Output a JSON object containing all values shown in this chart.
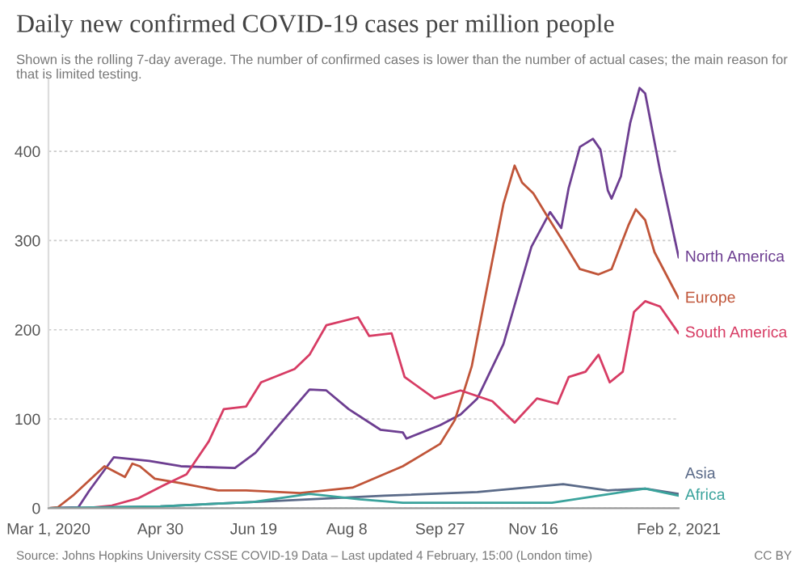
{
  "chart_data": {
    "type": "line",
    "title": "Daily new confirmed COVID-19 cases per million people",
    "subtitle": "Shown is the rolling 7-day average. The number of confirmed cases is lower than the number of actual cases; the main reason for that is limited testing.",
    "annotations": [
      "Source: Johns Hopkins University CSSE COVID-19 Data – Last updated 4 February, 15:00 (London time)",
      "CC BY"
    ],
    "xlim": [
      "2020-03-01",
      "2021-02-02"
    ],
    "xticks": [
      {
        "value": "2020-03-01",
        "label": "Mar 1, 2020"
      },
      {
        "value": "2020-04-30",
        "label": "Apr 30"
      },
      {
        "value": "2020-06-19",
        "label": "Jun 19"
      },
      {
        "value": "2020-08-08",
        "label": "Aug 8"
      },
      {
        "value": "2020-09-27",
        "label": "Sep 27"
      },
      {
        "value": "2020-11-16",
        "label": "Nov 16"
      },
      {
        "value": "2021-02-02",
        "label": "Feb 2, 2021"
      }
    ],
    "ylim": [
      0,
      480
    ],
    "yticks": [
      0,
      100,
      200,
      300,
      400
    ],
    "grid": "y",
    "line_style": "solid",
    "series": [
      {
        "name": "North America",
        "color": "#6d3e91",
        "x": [
          "2020-03-01",
          "2020-03-17",
          "2020-03-23",
          "2020-04-05",
          "2020-04-24",
          "2020-05-11",
          "2020-06-09",
          "2020-06-20",
          "2020-07-05",
          "2020-07-19",
          "2020-07-28",
          "2020-08-09",
          "2020-08-26",
          "2020-09-07",
          "2020-09-09",
          "2020-09-27",
          "2020-10-08",
          "2020-10-17",
          "2020-10-31",
          "2020-11-15",
          "2020-11-25",
          "2020-12-01",
          "2020-12-05",
          "2020-12-11",
          "2020-12-18",
          "2020-12-22",
          "2020-12-26",
          "2020-12-28",
          "2021-01-02",
          "2021-01-07",
          "2021-01-12",
          "2021-01-15",
          "2021-01-23",
          "2021-02-02"
        ],
        "values": [
          0,
          1,
          20,
          57,
          53,
          47,
          45,
          62,
          99,
          133,
          132,
          111,
          88,
          85,
          78,
          93,
          105,
          123,
          184,
          293,
          332,
          314,
          359,
          405,
          414,
          402,
          356,
          347,
          372,
          432,
          471,
          465,
          378,
          281
        ]
      },
      {
        "name": "Europe",
        "color": "#c05539",
        "x": [
          "2020-03-01",
          "2020-03-06",
          "2020-03-14",
          "2020-03-31",
          "2020-04-11",
          "2020-04-15",
          "2020-04-19",
          "2020-04-27",
          "2020-05-11",
          "2020-05-31",
          "2020-06-15",
          "2020-07-14",
          "2020-08-11",
          "2020-09-07",
          "2020-09-27",
          "2020-10-05",
          "2020-10-14",
          "2020-10-23",
          "2020-10-31",
          "2020-11-06",
          "2020-11-10",
          "2020-11-16",
          "2020-11-23",
          "2020-12-02",
          "2020-12-11",
          "2020-12-21",
          "2020-12-28",
          "2021-01-06",
          "2021-01-10",
          "2021-01-15",
          "2021-01-20",
          "2021-02-02"
        ],
        "values": [
          0,
          1,
          14,
          47,
          35,
          50,
          47,
          33,
          28,
          20,
          20,
          17,
          23,
          47,
          72,
          99,
          159,
          256,
          341,
          384,
          365,
          353,
          329,
          299,
          268,
          262,
          268,
          317,
          335,
          323,
          287,
          235
        ]
      },
      {
        "name": "South America",
        "color": "#d73c64",
        "x": [
          "2020-03-01",
          "2020-03-21",
          "2020-04-04",
          "2020-04-18",
          "2020-05-02",
          "2020-05-14",
          "2020-05-26",
          "2020-06-03",
          "2020-06-15",
          "2020-06-23",
          "2020-07-11",
          "2020-07-19",
          "2020-07-28",
          "2020-08-14",
          "2020-08-20",
          "2020-09-01",
          "2020-09-08",
          "2020-09-24",
          "2020-10-08",
          "2020-10-25",
          "2020-11-06",
          "2020-11-18",
          "2020-11-29",
          "2020-12-05",
          "2020-12-14",
          "2020-12-21",
          "2020-12-27",
          "2021-01-03",
          "2021-01-09",
          "2021-01-15",
          "2021-01-23",
          "2021-02-02"
        ],
        "values": [
          0,
          0,
          3,
          11,
          26,
          38,
          75,
          111,
          114,
          141,
          156,
          172,
          205,
          214,
          193,
          196,
          147,
          123,
          132,
          120,
          96,
          123,
          117,
          147,
          153,
          172,
          141,
          153,
          220,
          232,
          226,
          196
        ]
      },
      {
        "name": "Asia",
        "color": "#5a6a88",
        "x": [
          "2020-03-01",
          "2020-04-30",
          "2020-06-29",
          "2020-08-28",
          "2020-10-17",
          "2020-12-02",
          "2020-12-26",
          "2021-01-15",
          "2021-02-02"
        ],
        "values": [
          0,
          2,
          8,
          14,
          18,
          27,
          20,
          22,
          16
        ]
      },
      {
        "name": "Africa",
        "color": "#3aa39c",
        "x": [
          "2020-03-01",
          "2020-04-30",
          "2020-06-19",
          "2020-07-19",
          "2020-08-15",
          "2020-09-07",
          "2020-11-26",
          "2021-01-15",
          "2021-02-02"
        ],
        "values": [
          0,
          2,
          7,
          16,
          10,
          6,
          6,
          22,
          14
        ]
      }
    ]
  }
}
